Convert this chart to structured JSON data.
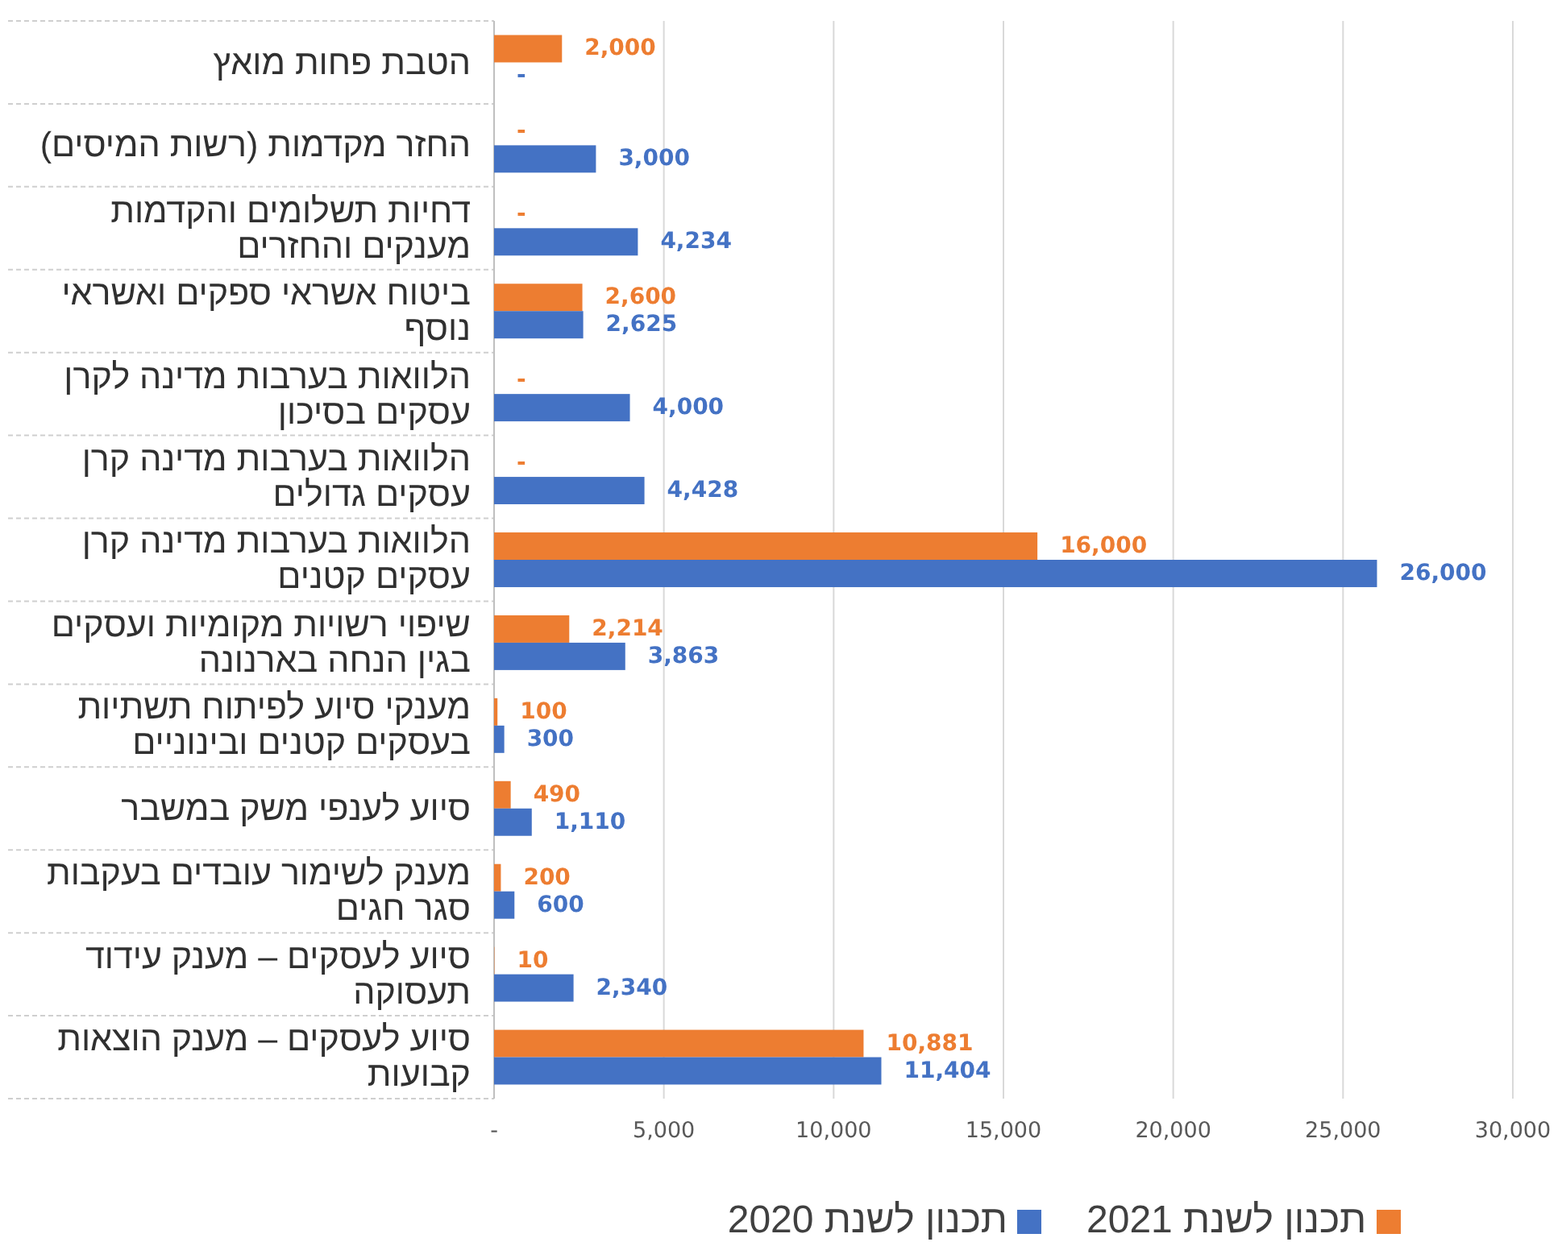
{
  "chart_data": {
    "type": "bar",
    "orientation": "horizontal",
    "categories": [
      "הטבת פחות מואץ",
      "החזר מקדמות (רשות המיסים)",
      "דחיות תשלומים והקדמות מענקים והחזרים",
      "ביטוח אשראי ספקים ואשראי נוסף",
      "הלוואות בערבות מדינה לקרן עסקים בסיכון",
      "הלוואות בערבות מדינה קרן עסקים גדולים",
      "הלוואות בערבות מדינה קרן עסקים קטנים",
      "שיפוי רשויות מקומיות ועסקים בגין הנחה בארנונה",
      "מענקי סיוע לפיתוח תשתיות בעסקים קטנים ובינוניים",
      "סיוע לענפי משק במשבר",
      "מענק לשימור עובדים בעקבות סגר חגים",
      "סיוע לעסקים – מענק עידוד תעסוקה",
      "סיוע לעסקים – מענק הוצאות קבועות"
    ],
    "series": [
      {
        "name": "תכנון לשנת 2021",
        "color": "#ed7d31",
        "values": [
          2000,
          0,
          0,
          2600,
          0,
          0,
          16000,
          2214,
          100,
          490,
          200,
          10,
          10881
        ],
        "value_labels": [
          "2,000",
          "-",
          "-",
          "2,600",
          "-",
          "-",
          "16,000",
          "2,214",
          "100",
          "490",
          "200",
          "10",
          "10,881"
        ]
      },
      {
        "name": "תכנון לשנת 2020",
        "color": "#4472c4",
        "values": [
          0,
          3000,
          4234,
          2625,
          4000,
          4428,
          26000,
          3863,
          300,
          1110,
          600,
          2340,
          11404
        ],
        "value_labels": [
          "-",
          "3,000",
          "4,234",
          "2,625",
          "4,000",
          "4,428",
          "26,000",
          "3,863",
          "300",
          "1,110",
          "600",
          "2,340",
          "11,404"
        ]
      }
    ],
    "xlim": [
      0,
      30000
    ],
    "xticks": [
      {
        "value": 0,
        "label": "-"
      },
      {
        "value": 5000,
        "label": "5,000"
      },
      {
        "value": 10000,
        "label": "10,000"
      },
      {
        "value": 15000,
        "label": "15,000"
      },
      {
        "value": 20000,
        "label": "20,000"
      },
      {
        "value": 25000,
        "label": "25,000"
      },
      {
        "value": 30000,
        "label": "30,000"
      }
    ],
    "grid": "x",
    "legend": "bottom"
  }
}
